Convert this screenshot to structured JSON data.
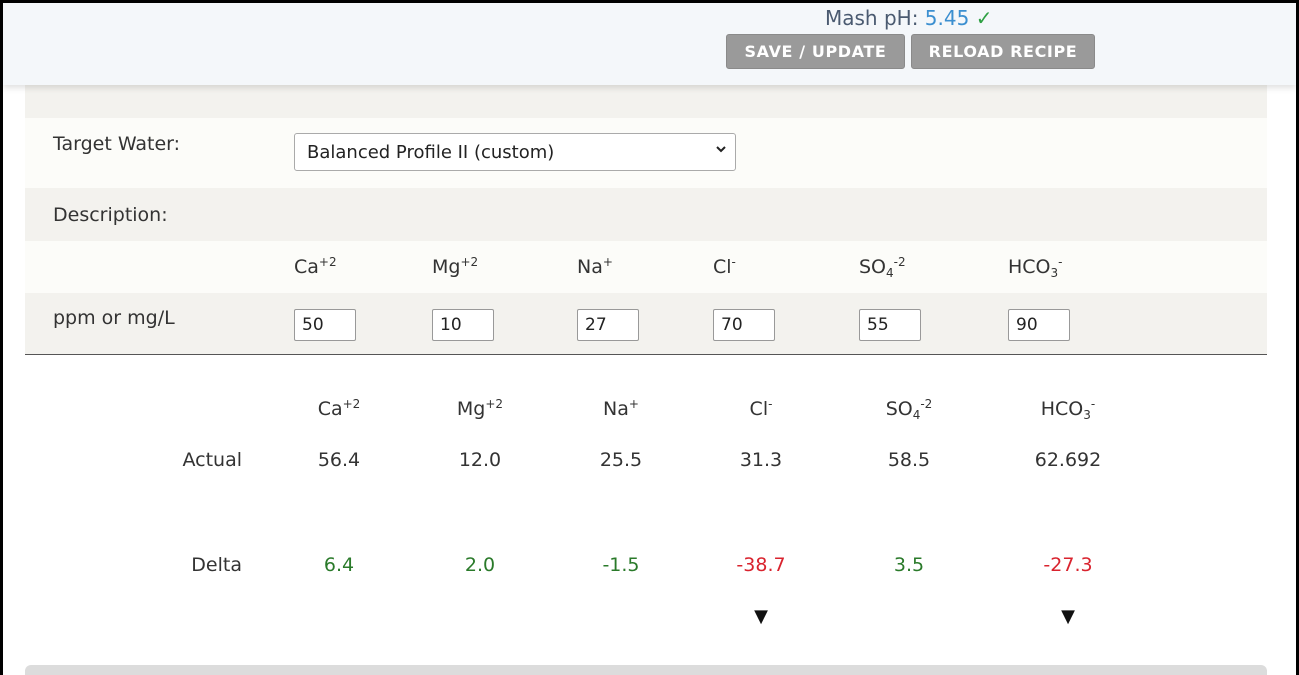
{
  "header": {
    "mash_ph_label": "Mash pH:",
    "mash_ph_value": "5.45",
    "mash_ph_check": "✓",
    "save_label": "SAVE / UPDATE",
    "reload_label": "RELOAD RECIPE"
  },
  "target": {
    "label": "Target Water:",
    "selected": "Balanced Profile II (custom)"
  },
  "description": {
    "label": "Description:"
  },
  "ions": [
    {
      "base": "Ca",
      "sub": "",
      "sup": "+2"
    },
    {
      "base": "Mg",
      "sub": "",
      "sup": "+2"
    },
    {
      "base": "Na",
      "sub": "",
      "sup": "+"
    },
    {
      "base": "Cl",
      "sub": "",
      "sup": "-"
    },
    {
      "base": "SO",
      "sub": "4",
      "sup": "-2"
    },
    {
      "base": "HCO",
      "sub": "3",
      "sup": "-"
    }
  ],
  "units_label": "ppm or mg/L",
  "inputs": [
    "50",
    "10",
    "27",
    "70",
    "55",
    "90"
  ],
  "results": {
    "actual_label": "Actual",
    "delta_label": "Delta",
    "actual": [
      "56.4",
      "12.0",
      "25.5",
      "31.3",
      "58.5",
      "62.692"
    ],
    "delta": [
      "6.4",
      "2.0",
      "-1.5",
      "-38.7",
      "3.5",
      "-27.3"
    ],
    "delta_status": [
      "pos",
      "pos",
      "pos",
      "neg",
      "pos",
      "neg"
    ],
    "arrow_glyph": "▼"
  },
  "colors": {
    "positive": "#2a7a2a",
    "negative": "#d9232e",
    "ph_value": "#3b8fd0",
    "button": "#9a9a9a"
  }
}
